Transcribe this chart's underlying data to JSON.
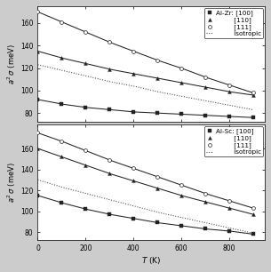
{
  "top_label": "Al-Zr:",
  "bottom_label": "Al-Sc:",
  "directions": [
    "[100]",
    "[110]",
    "[111]"
  ],
  "legend_isotropic": "isotropic",
  "ylabel": "$a^2\\,\\sigma$ (meV)",
  "xlabel": "$T$ (K)",
  "T_range": [
    0,
    950
  ],
  "top": {
    "T_pts": [
      0,
      100,
      200,
      300,
      400,
      500,
      600,
      700,
      800,
      900
    ],
    "y100": [
      92,
      88,
      85,
      83,
      81,
      80,
      79,
      78,
      77,
      76
    ],
    "y110": [
      135,
      129,
      124,
      119,
      115,
      111,
      107,
      103,
      99,
      96
    ],
    "y111": [
      170,
      161,
      152,
      143,
      135,
      127,
      120,
      112,
      105,
      98
    ],
    "iso_y": [
      123,
      118,
      113,
      108,
      104,
      99,
      95,
      91,
      87,
      83
    ],
    "ylim": [
      72,
      175
    ],
    "yticks": [
      80,
      100,
      120,
      140,
      160
    ]
  },
  "bottom": {
    "T_pts": [
      0,
      100,
      200,
      300,
      400,
      500,
      600,
      700,
      800,
      900
    ],
    "y100": [
      115,
      108,
      102,
      97,
      93,
      89,
      86,
      83,
      81,
      78
    ],
    "y110": [
      160,
      152,
      144,
      136,
      129,
      122,
      115,
      109,
      103,
      97
    ],
    "y111": [
      175,
      167,
      158,
      149,
      141,
      133,
      125,
      117,
      110,
      103
    ],
    "iso_y": [
      130,
      123,
      117,
      111,
      105,
      99,
      94,
      89,
      84,
      79
    ],
    "ylim": [
      72,
      183
    ],
    "yticks": [
      80,
      100,
      120,
      140,
      160
    ]
  },
  "line_color": "#222222",
  "iso_color": "#444444",
  "bg_color": "#ffffff",
  "fig_bg": "#cccccc",
  "marker_100": "s",
  "marker_110": "^",
  "marker_111": "o",
  "markersize": 2.8,
  "linewidth": 0.75,
  "tick_fontsize": 5.5,
  "label_fontsize": 6.0,
  "legend_fontsize": 5.2
}
